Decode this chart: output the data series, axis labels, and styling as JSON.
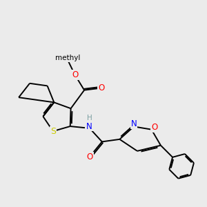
{
  "bg_color": "#ebebeb",
  "atom_colors": {
    "C": "#000000",
    "H": "#7a9ea0",
    "N": "#0000FF",
    "O": "#FF0000",
    "S": "#cccc00"
  },
  "bond_color": "#000000",
  "bond_width": 1.4,
  "font_size": 8.5
}
